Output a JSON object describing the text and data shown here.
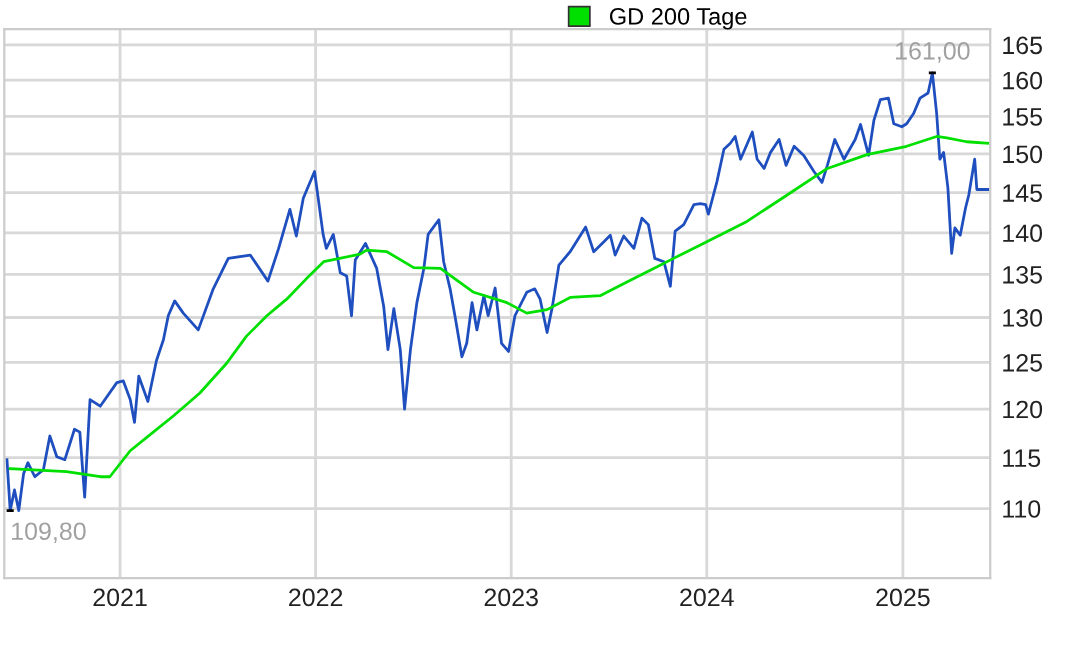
{
  "chart_data": {
    "type": "line",
    "series": [
      {
        "color": "#1f4fbf",
        "x": [
          "2020-06-04",
          "2020-06-10",
          "2020-06-18",
          "2020-06-26",
          "2020-07-05",
          "2020-07-13",
          "2020-07-26",
          "2020-08-11",
          "2020-08-23",
          "2020-09-05",
          "2020-09-20",
          "2020-10-08",
          "2020-10-18",
          "2020-10-27",
          "2020-11-06",
          "2020-11-25",
          "2020-12-26",
          "2021-01-07",
          "2021-01-20",
          "2021-01-28",
          "2021-02-05",
          "2021-02-22",
          "2021-03-10",
          "2021-03-23",
          "2021-04-01",
          "2021-04-13",
          "2021-04-29",
          "2021-05-27",
          "2021-06-24",
          "2021-07-22",
          "2021-09-01",
          "2021-10-04",
          "2021-10-24",
          "2021-11-14",
          "2021-11-26",
          "2021-12-09",
          "2021-12-30",
          "2022-01-15",
          "2022-01-21",
          "2022-02-03",
          "2022-02-16",
          "2022-02-28",
          "2022-03-09",
          "2022-03-16",
          "2022-04-04",
          "2022-04-25",
          "2022-05-08",
          "2022-05-16",
          "2022-05-27",
          "2022-06-08",
          "2022-06-16",
          "2022-06-27",
          "2022-07-09",
          "2022-07-22",
          "2022-07-30",
          "2022-08-19",
          "2022-08-28",
          "2022-09-09",
          "2022-09-18",
          "2022-10-01",
          "2022-10-10",
          "2022-10-20",
          "2022-10-29",
          "2022-11-11",
          "2022-11-19",
          "2022-12-02",
          "2022-12-14",
          "2022-12-27",
          "2023-01-08",
          "2023-01-30",
          "2023-02-14",
          "2023-02-24",
          "2023-03-09",
          "2023-03-19",
          "2023-03-31",
          "2023-04-21",
          "2023-05-20",
          "2023-06-04",
          "2023-06-23",
          "2023-07-05",
          "2023-07-14",
          "2023-07-30",
          "2023-08-18",
          "2023-09-02",
          "2023-09-14",
          "2023-09-26",
          "2023-10-13",
          "2023-10-25",
          "2023-11-03",
          "2023-11-19",
          "2023-12-08",
          "2023-12-20",
          "2023-12-30",
          "2024-01-04",
          "2024-01-20",
          "2024-02-02",
          "2024-02-14",
          "2024-02-23",
          "2024-03-04",
          "2024-03-26",
          "2024-04-04",
          "2024-04-17",
          "2024-04-29",
          "2024-05-15",
          "2024-05-28",
          "2024-06-12",
          "2024-06-30",
          "2024-07-19",
          "2024-08-03",
          "2024-08-13",
          "2024-08-27",
          "2024-09-13",
          "2024-10-04",
          "2024-10-14",
          "2024-10-29",
          "2024-11-08",
          "2024-11-20",
          "2024-12-05",
          "2024-12-15",
          "2024-12-30",
          "2025-01-08",
          "2025-01-21",
          "2025-02-02",
          "2025-02-17",
          "2025-02-25",
          "2025-03-05",
          "2025-03-11",
          "2025-03-18",
          "2025-03-26",
          "2025-04-02",
          "2025-04-08",
          "2025-04-18",
          "2025-04-28",
          "2025-05-04",
          "2025-05-15",
          "2025-05-19",
          "2025-06-09"
        ],
        "values": [
          114.8,
          109.8,
          111.8,
          109.8,
          113.4,
          114.5,
          113.1,
          113.8,
          117.2,
          115.1,
          114.8,
          117.9,
          117.6,
          111.1,
          121.0,
          120.3,
          122.8,
          123.0,
          121.0,
          118.6,
          123.5,
          120.8,
          125.2,
          127.5,
          130.2,
          131.9,
          130.5,
          128.6,
          133.3,
          136.9,
          137.3,
          134.2,
          138.1,
          142.9,
          139.6,
          144.3,
          147.7,
          139.8,
          138.1,
          139.8,
          135.2,
          134.8,
          130.2,
          136.7,
          138.7,
          135.7,
          131.3,
          126.4,
          131.0,
          126.4,
          120.0,
          126.4,
          131.7,
          135.7,
          139.8,
          141.6,
          136.5,
          133.3,
          130.2,
          125.6,
          127.1,
          131.7,
          128.6,
          132.5,
          130.2,
          133.4,
          127.1,
          126.2,
          130.2,
          132.9,
          133.3,
          132.1,
          128.3,
          131.3,
          136.1,
          137.7,
          140.7,
          137.7,
          138.9,
          139.7,
          137.3,
          139.6,
          138.1,
          141.8,
          141.0,
          136.9,
          136.5,
          133.6,
          140.2,
          141.0,
          143.5,
          143.6,
          143.5,
          142.3,
          146.4,
          150.6,
          151.4,
          152.3,
          149.3,
          152.9,
          149.3,
          148.1,
          150.2,
          151.9,
          148.5,
          151.0,
          149.8,
          147.7,
          146.3,
          148.5,
          151.9,
          149.3,
          151.9,
          153.9,
          149.8,
          154.5,
          157.3,
          157.5,
          154.0,
          153.6,
          154.0,
          155.4,
          157.5,
          158.2,
          161.0,
          155.4,
          149.3,
          150.2,
          145.6,
          137.5,
          140.6,
          139.7,
          143.1,
          144.7,
          149.3,
          145.4,
          145.4
        ]
      },
      {
        "name": "GD 200 Tage",
        "color": "#00e000",
        "x": [
          "2020-06-10",
          "2020-09-23",
          "2020-11-25",
          "2020-12-13",
          "2021-01-20",
          "2021-03-04",
          "2021-04-11",
          "2021-05-30",
          "2021-07-19",
          "2021-08-25",
          "2021-10-02",
          "2021-11-08",
          "2021-12-15",
          "2022-01-16",
          "2022-03-25",
          "2022-04-06",
          "2022-05-14",
          "2022-07-03",
          "2022-08-22",
          "2022-10-23",
          "2022-12-24",
          "2023-01-30",
          "2023-03-09",
          "2023-04-21",
          "2023-06-16",
          "2023-08-05",
          "2023-09-24",
          "2023-10-31",
          "2023-12-20",
          "2024-03-16",
          "2024-05-30",
          "2024-08-13",
          "2024-10-26",
          "2025-01-08",
          "2025-03-05",
          "2025-03-24",
          "2025-04-30",
          "2025-06-09"
        ],
        "values": [
          113.9,
          113.6,
          113.1,
          113.1,
          115.7,
          117.6,
          119.3,
          121.7,
          124.9,
          127.9,
          130.2,
          132.1,
          134.5,
          136.5,
          137.4,
          137.9,
          137.7,
          135.8,
          135.7,
          132.9,
          131.7,
          130.5,
          130.9,
          132.3,
          132.5,
          134.1,
          135.7,
          136.9,
          138.5,
          141.4,
          144.7,
          148.1,
          149.9,
          151.0,
          152.3,
          152.1,
          151.6,
          151.4
        ]
      }
    ],
    "log": "y",
    "xlim": [
      "2020-05-30",
      "2025-06-13"
    ],
    "xticks": [
      {
        "value": "2021-01-01",
        "label": "2021"
      },
      {
        "value": "2022-01-01",
        "label": "2022"
      },
      {
        "value": "2023-01-01",
        "label": "2023"
      },
      {
        "value": "2024-01-01",
        "label": "2024"
      },
      {
        "value": "2025-01-01",
        "label": "2025"
      }
    ],
    "ylim": [
      103.5,
      167.3
    ],
    "yticks": [
      110,
      115,
      120,
      125,
      130,
      135,
      140,
      145,
      150,
      155,
      160,
      165
    ],
    "annotations": [
      {
        "text": "161,00",
        "x": "2025-02-25",
        "y": 161.0
      },
      {
        "text": "109,80",
        "x": "2020-06-10",
        "y": 109.8
      }
    ],
    "grid": true,
    "legend": "top"
  }
}
